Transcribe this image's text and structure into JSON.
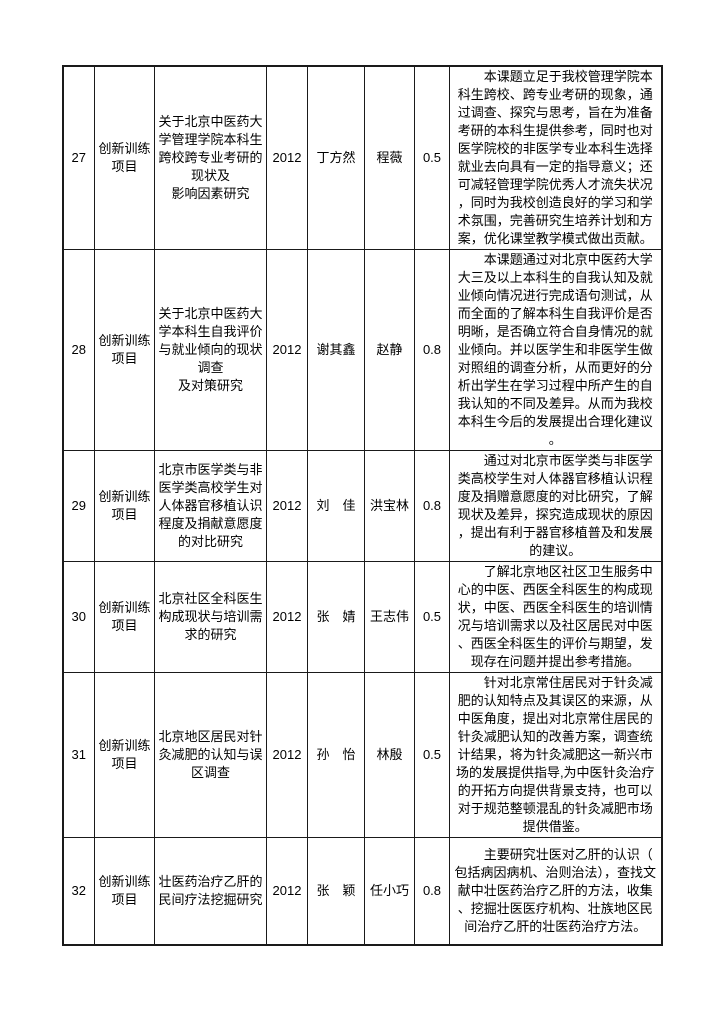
{
  "page": {
    "background_color": "#ffffff",
    "text_color": "#000000",
    "border_color": "#1a1a1a"
  },
  "table": {
    "rows": [
      {
        "no": "27",
        "type": "创新训练项目",
        "title": "关于北京中医药大学管理学院本科生跨校跨专业考研的现状及\n影响因素研究",
        "year": "2012",
        "student": "丁方然",
        "advisor": "程薇",
        "credit": "0.5",
        "desc": "本课题立足于我校管理学院本科生跨校、跨专业考研的现象，通过调查、探究与思考，旨在为准备考研的本科生提供参考，同时也对医学院校的非医学专业本科生选择就业去向具有一定的指导意义；还可减轻管理学院优秀人才流失状况，同时为我校创造良好的学习和学术氛围，完善研究生培养计划和方案，优化课堂教学模式做出贡献。"
      },
      {
        "no": "28",
        "type": "创新训练项目",
        "title": "关于北京中医药大学本科生自我评价与就业倾向的现状调查\n及对策研究",
        "year": "2012",
        "student": "谢其鑫",
        "advisor": "赵静",
        "credit": "0.8",
        "desc": "本课题通过对北京中医药大学大三及以上本科生的自我认知及就业倾向情况进行完成语句测试，从而全面的了解本科生自我评价是否明晰，是否确立符合自身情况的就业倾向。并以医学生和非医学生做对照组的调查分析，从而更好的分析出学生在学习过程中所产生的自我认知的不同及差异。从而为我校本科生今后的发展提出合理化建议。"
      },
      {
        "no": "29",
        "type": "创新训练项目",
        "title": "北京市医学类与非医学类高校学生对人体器官移植认识程度及捐献意愿度的对比研究",
        "year": "2012",
        "student": "刘　佳",
        "advisor": "洪宝林",
        "credit": "0.8",
        "desc": "通过对北京市医学类与非医学类高校学生对人体器官移植认识程度及捐赠意愿度的对比研究，了解现状及差异，探究造成现状的原因，提出有利于器官移植普及和发展的建议。"
      },
      {
        "no": "30",
        "type": "创新训练项目",
        "title": "北京社区全科医生构成现状与培训需求的研究",
        "year": "2012",
        "student": "张　婧",
        "advisor": "王志伟",
        "credit": "0.5",
        "desc": "了解北京地区社区卫生服务中心的中医、西医全科医生的构成现状，中医、西医全科医生的培训情况与培训需求以及社区居民对中医、西医全科医生的评价与期望，发现存在问题并提出参考措施。"
      },
      {
        "no": "31",
        "type": "创新训练项目",
        "title": "北京地区居民对针灸减肥的认知与误区调查",
        "year": "2012",
        "student": "孙　怡",
        "advisor": "林殷",
        "credit": "0.5",
        "desc": "针对北京常住居民对于针灸减肥的认知特点及其误区的来源，从中医角度，提出对北京常住居民的针灸减肥认知的改善方案，调查统计结果，将为针灸减肥这一新兴市场的发展提供指导,为中医针灸治疗的开拓方向提供背景支持，也可以对于规范整顿混乱的针灸减肥市场提供借鉴。"
      },
      {
        "no": "32",
        "type": "创新训练项目",
        "title": "壮医药治疗乙肝的民间疗法挖掘研究",
        "year": "2012",
        "student": "张　颖",
        "advisor": "任小巧",
        "credit": "0.8",
        "desc": "主要研究壮医对乙肝的认识（包括病因病机、治则治法），查找文献中壮医药治疗乙肝的方法，收集、挖掘壮医医疗机构、壮族地区民间治疗乙肝的壮医药治疗方法。"
      }
    ]
  }
}
